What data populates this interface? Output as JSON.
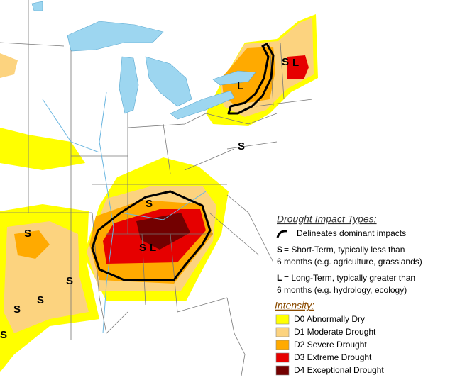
{
  "legend": {
    "impact_title": "Drought Impact Types:",
    "delineates": "Delineates dominant impacts",
    "short_letter": "S",
    "short_line1": "= Short-Term, typically less than",
    "short_line2": "6 months (e.g. agriculture, grasslands)",
    "long_letter": "L",
    "long_line1": "= Long-Term, typically greater than",
    "long_line2": "6 months (e.g. hydrology, ecology)",
    "intensity_title": "Intensity:",
    "categories": [
      {
        "label": "D0 Abnormally Dry",
        "color": "#ffff00"
      },
      {
        "label": "D1 Moderate Drought",
        "color": "#fcd37f"
      },
      {
        "label": "D2 Severe Drought",
        "color": "#ffaa00"
      },
      {
        "label": "D3 Extreme Drought",
        "color": "#e60000"
      },
      {
        "label": "D4 Exceptional Drought",
        "color": "#730000"
      }
    ]
  },
  "map_labels": [
    "S",
    "L",
    "L",
    "S",
    "S",
    "S",
    "S",
    "L",
    "S",
    "S",
    "S",
    "S"
  ]
}
